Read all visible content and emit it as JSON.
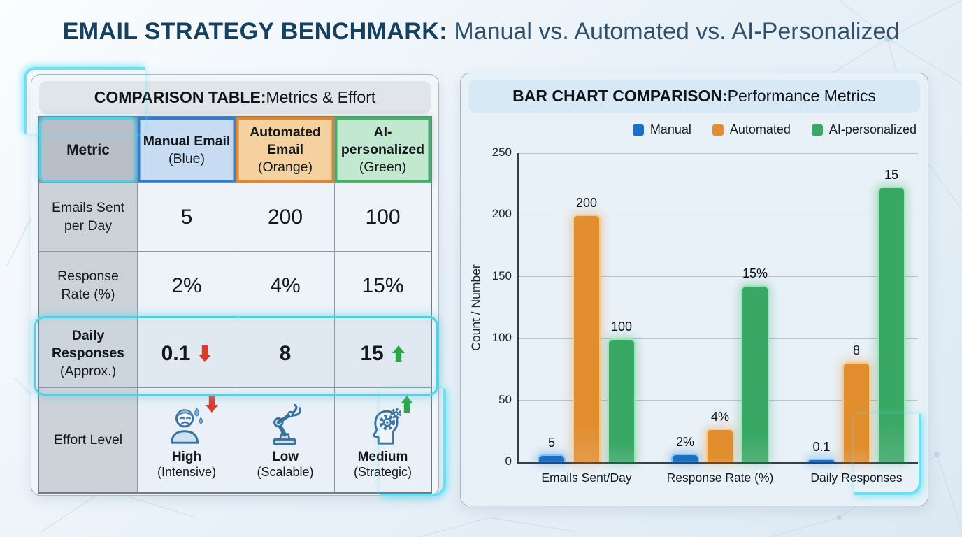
{
  "page_title": {
    "bold": "EMAIL STRATEGY BENCHMARK:",
    "regular": " Manual vs. Automated vs. AI-Personalized"
  },
  "comparison_table": {
    "header_bold": "COMPARISON TABLE:",
    "header_regular": " Metrics & Effort",
    "columns": [
      {
        "title": "Metric",
        "sub": ""
      },
      {
        "title": "Manual Email",
        "sub": "(Blue)"
      },
      {
        "title": "Automated Email",
        "sub": "(Orange)"
      },
      {
        "title": "AI-personalized",
        "sub": "(Green)"
      }
    ],
    "rows": [
      {
        "metric": "Emails Sent per Day",
        "values": [
          "5",
          "200",
          "100"
        ]
      },
      {
        "metric": "Response Rate (%)",
        "values": [
          "2%",
          "4%",
          "15%"
        ]
      },
      {
        "metric": "Daily Responses",
        "metric_sub": "(Approx.)",
        "values": [
          "0.1",
          "8",
          "15"
        ],
        "trends": [
          "down",
          "",
          "up"
        ]
      },
      {
        "metric": "Effort Level",
        "effort": [
          {
            "icon": "stressed-person-icon",
            "trend": "down",
            "level": "High",
            "sub": "(Intensive)"
          },
          {
            "icon": "robot-arm-icon",
            "trend": "",
            "level": "Low",
            "sub": "(Scalable)"
          },
          {
            "icon": "head-gears-icon",
            "trend": "up",
            "level": "Medium",
            "sub": "(Strategic)"
          }
        ]
      }
    ]
  },
  "chart_panel": {
    "header_bold": "BAR CHART COMPARISON:",
    "header_regular": " Performance Metrics"
  },
  "chart_data": {
    "type": "bar",
    "title": "BAR CHART COMPARISON: Performance Metrics",
    "categories": [
      "Emails Sent/Day",
      "Response Rate (%)",
      "Daily Responses"
    ],
    "series": [
      {
        "name": "Manual",
        "color": "#1a70c8",
        "border": "#7fc2f0",
        "values": [
          5,
          2,
          0.1
        ],
        "value_labels": [
          "5",
          "2%",
          "0.1"
        ],
        "bar_heights_units": [
          6,
          7,
          2
        ]
      },
      {
        "name": "Automated",
        "color": "#e28d2e",
        "border": "#f8c987",
        "values": [
          200,
          4,
          8
        ],
        "value_labels": [
          "200",
          "4%",
          "8"
        ],
        "bar_heights_units": [
          200,
          27,
          81
        ]
      },
      {
        "name": "AI-personalized",
        "color": "#3aa865",
        "border": "#9ce7b8",
        "values": [
          100,
          15,
          15
        ],
        "value_labels": [
          "100",
          "15%",
          "15"
        ],
        "bar_heights_units": [
          100,
          143,
          223
        ]
      }
    ],
    "ylabel": "Count / Number",
    "yticks": [
      0,
      50,
      100,
      150,
      200,
      250
    ],
    "ylim": [
      0,
      250
    ],
    "grid": true,
    "legend_position": "top"
  },
  "colors": {
    "accent_cyan": "#54cfe4",
    "trend_up_green": "#2aa64a",
    "trend_down_red": "#dc3b2a",
    "column_blue": "#2e7cd2",
    "column_orange": "#e0862b",
    "column_green": "#3fb264"
  }
}
